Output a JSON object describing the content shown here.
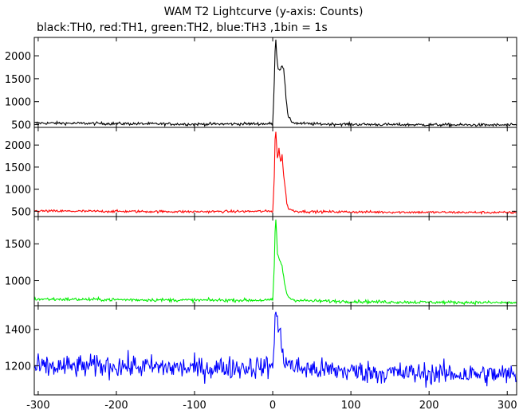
{
  "chart_data": {
    "type": "line",
    "title": "WAM T2 Lightcurve (y-axis: Counts)",
    "subtitle": "black:TH0, red:TH1, green:TH2, blue:TH3 ,1bin = 1s",
    "xlabel": "",
    "ylabel": "",
    "xlim": [
      -305,
      312
    ],
    "x_ticks": [
      -300,
      -200,
      -100,
      0,
      100,
      200,
      300
    ],
    "grid": false,
    "panels": [
      {
        "name": "TH0",
        "color": "#000000",
        "ylim": [
          440,
          2400
        ],
        "y_ticks": [
          500,
          1000,
          1500,
          2000
        ],
        "baseline": 500,
        "noise": 22,
        "x": [
          -305,
          -100,
          0,
          2,
          3,
          4,
          5,
          6,
          8,
          10,
          12,
          14,
          16,
          18,
          20,
          25,
          30,
          50,
          150,
          312
        ],
        "y": [
          535,
          510,
          520,
          1400,
          2150,
          2380,
          2100,
          1800,
          1720,
          1700,
          1820,
          1740,
          1300,
          900,
          650,
          560,
          530,
          515,
          500,
          490
        ]
      },
      {
        "name": "TH1",
        "color": "#ff0000",
        "ylim": [
          380,
          2400
        ],
        "y_ticks": [
          500,
          1000,
          1500,
          2000
        ],
        "baseline": 480,
        "noise": 20,
        "x": [
          -305,
          -100,
          0,
          2,
          3,
          4,
          5,
          6,
          8,
          10,
          12,
          14,
          16,
          18,
          20,
          25,
          30,
          50,
          150,
          312
        ],
        "y": [
          505,
          490,
          500,
          1300,
          2100,
          2330,
          2000,
          1700,
          1900,
          1620,
          1750,
          1350,
          1000,
          700,
          560,
          520,
          500,
          490,
          480,
          470
        ]
      },
      {
        "name": "TH2",
        "color": "#00ee00",
        "ylim": [
          660,
          1870
        ],
        "y_ticks": [
          1000,
          1500
        ],
        "baseline": 730,
        "noise": 16,
        "x": [
          -305,
          -100,
          0,
          2,
          3,
          4,
          5,
          6,
          8,
          10,
          12,
          14,
          16,
          18,
          20,
          25,
          30,
          50,
          150,
          312
        ],
        "y": [
          750,
          735,
          735,
          1200,
          1650,
          1840,
          1620,
          1380,
          1300,
          1250,
          1180,
          1050,
          920,
          830,
          780,
          745,
          735,
          725,
          710,
          700
        ]
      },
      {
        "name": "TH3",
        "color": "#0000ff",
        "ylim": [
          1040,
          1530
        ],
        "y_ticks": [
          1200,
          1400
        ],
        "baseline": 1190,
        "noise": 45,
        "x": [
          -305,
          -200,
          -100,
          0,
          2,
          3,
          4,
          5,
          6,
          8,
          10,
          12,
          14,
          16,
          20,
          30,
          50,
          150,
          312
        ],
        "y": [
          1190,
          1200,
          1185,
          1195,
          1380,
          1470,
          1500,
          1450,
          1420,
          1400,
          1350,
          1300,
          1250,
          1230,
          1210,
          1190,
          1180,
          1160,
          1150
        ]
      }
    ]
  }
}
